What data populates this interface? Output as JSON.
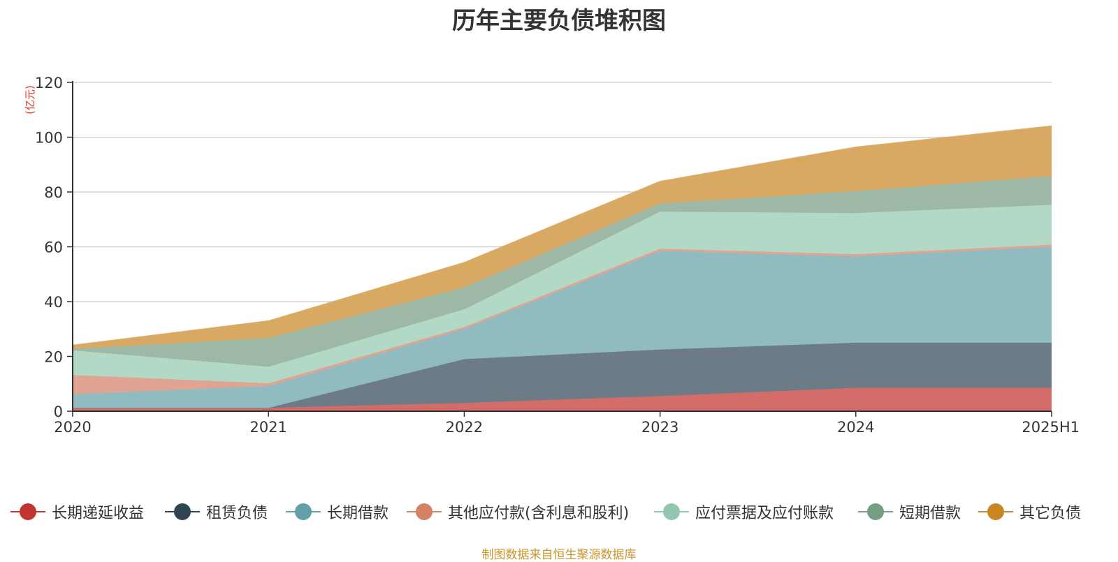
{
  "chart_data": {
    "type": "area",
    "title": "历年主要负债堆积图",
    "ylabel": "(亿元)",
    "x": [
      "2020",
      "2021",
      "2022",
      "2023",
      "2024",
      "2025H1"
    ],
    "ylim": [
      0,
      120
    ],
    "yticks": [
      0,
      20,
      40,
      60,
      80,
      100,
      120
    ],
    "grid": true,
    "stacked": true,
    "legend_position": "bottom",
    "series": [
      {
        "name": "长期递延收益",
        "color": "#c23531",
        "fill": "#d46d6a",
        "values": [
          1.2,
          1.2,
          3.0,
          5.5,
          8.5,
          8.5
        ]
      },
      {
        "name": "租赁负债",
        "color": "#2f4554",
        "fill": "#6d7b86",
        "values": [
          0.0,
          0.0,
          16.0,
          17.0,
          16.5,
          16.5
        ]
      },
      {
        "name": "长期借款",
        "color": "#61a0a8",
        "fill": "#90bbc1",
        "values": [
          5.0,
          8.0,
          11.0,
          36.0,
          31.5,
          35.0
        ]
      },
      {
        "name": "其他应付款(含利息和股利)",
        "color": "#d48265",
        "fill": "#e0a592",
        "values": [
          7.0,
          1.0,
          0.7,
          0.8,
          0.8,
          0.8
        ]
      },
      {
        "name": "应付票据及应付账款",
        "color": "#91c7ae",
        "fill": "#b2d8c6",
        "values": [
          9.0,
          6.0,
          6.5,
          13.5,
          15.0,
          14.5
        ]
      },
      {
        "name": "短期借款",
        "color": "#749f83",
        "fill": "#9db8a5",
        "values": [
          0.5,
          10.5,
          8.0,
          3.0,
          8.0,
          10.5
        ]
      },
      {
        "name": "其它负债",
        "color": "#ca8622",
        "fill": "#d9a862",
        "values": [
          1.3,
          6.2,
          9.0,
          8.0,
          16.0,
          18.2
        ]
      }
    ]
  },
  "footer": {
    "source": "制图数据来自恒生聚源数据库"
  }
}
